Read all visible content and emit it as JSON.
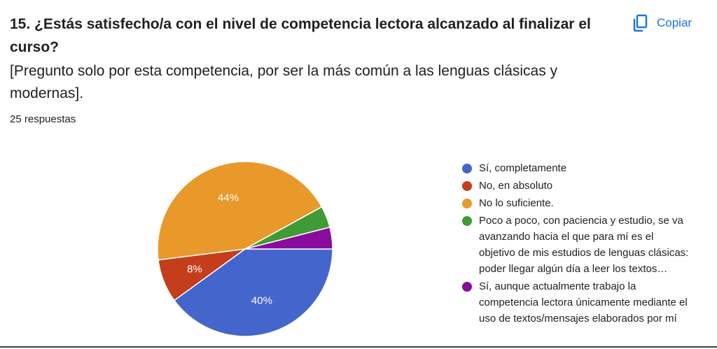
{
  "question": {
    "title": "15. ¿Estás satisfecho/a con el nivel de competencia lectora alcanzado al finalizar el curso?",
    "description": "[Pregunto solo por esta competencia, por ser la más común a las lenguas clásicas y modernas].",
    "response_count": "25 respuestas"
  },
  "toolbar": {
    "copy_label": "Copiar",
    "copy_icon": "copy-icon"
  },
  "colors": {
    "accent": "#1a73e8"
  },
  "chart_data": {
    "type": "pie",
    "slices": [
      {
        "label": "Sí, completamente",
        "value": 40,
        "pct_label": "40%",
        "color": "#4466cc"
      },
      {
        "label": "No, en absoluto",
        "value": 8,
        "pct_label": "8%",
        "color": "#c43e1c"
      },
      {
        "label": "No lo suficiente.",
        "value": 44,
        "pct_label": "44%",
        "color": "#e8992a"
      },
      {
        "label": "Poco a poco, con paciencia y estudio, se va avanzando hacia el que para mí es el objetivo de mis estudios de lenguas clásicas: poder llegar algún día a leer los textos originales con soltura",
        "value": 4,
        "pct_label": "",
        "color": "#3f9b35"
      },
      {
        "label": "Sí, aunque actualmente trabajo la competencia lectora únicamente mediante el uso de textos/mensajes elaborados por mí",
        "value": 4,
        "pct_label": "",
        "color": "#8a0c9c"
      }
    ],
    "legend_position": "right"
  }
}
